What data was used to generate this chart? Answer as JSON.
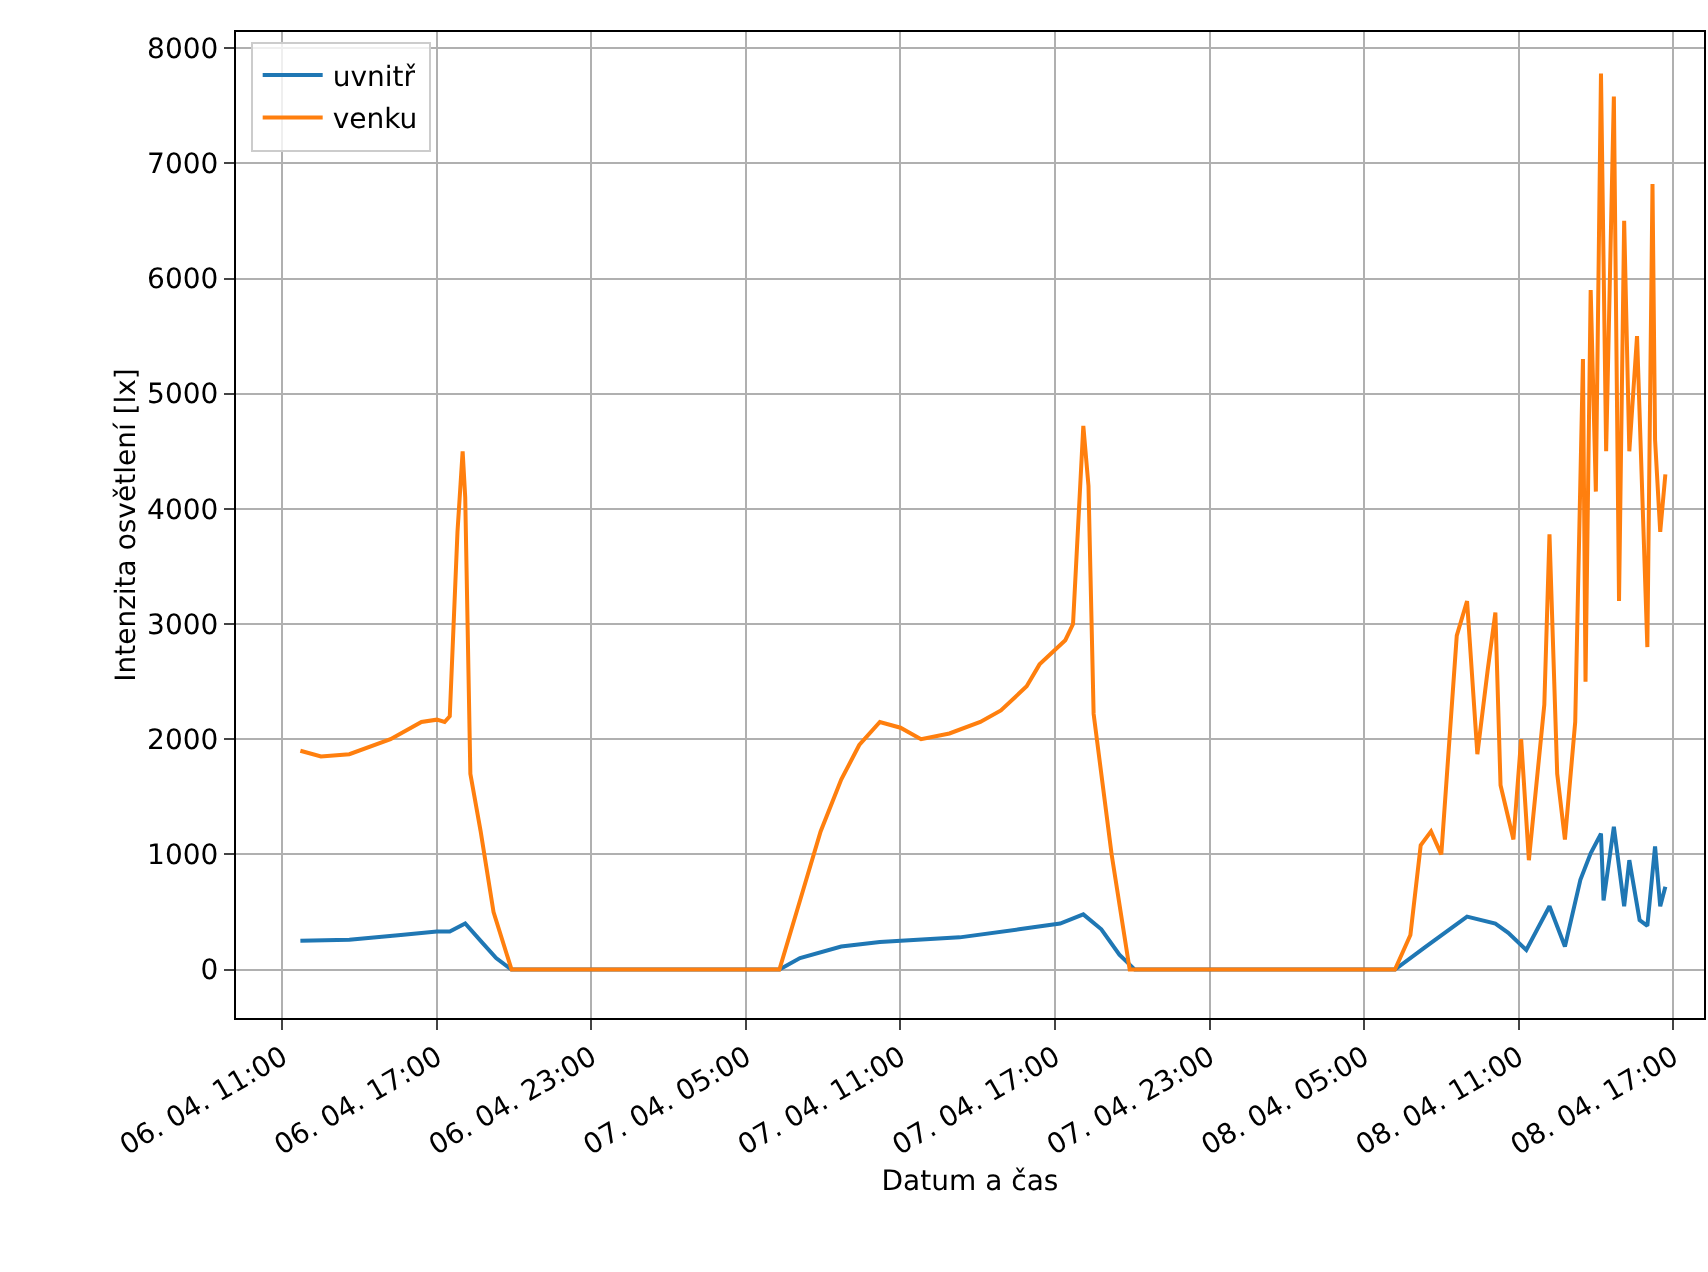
{
  "chart_data": {
    "type": "line",
    "xlabel": "Datum a čas",
    "ylabel": "Intenzita osvětlení [lx]",
    "xlim": [
      "--04-06T09:12",
      "--04-08T18:12"
    ],
    "ylim": [
      -420,
      8140
    ],
    "xticks": [
      {
        "value": "--04-06T11:00",
        "label": "06. 04. 11:00"
      },
      {
        "value": "--04-06T17:00",
        "label": "06. 04. 17:00"
      },
      {
        "value": "--04-06T23:00",
        "label": "06. 04. 23:00"
      },
      {
        "value": "--04-07T05:00",
        "label": "07. 04. 05:00"
      },
      {
        "value": "--04-07T11:00",
        "label": "07. 04. 11:00"
      },
      {
        "value": "--04-07T17:00",
        "label": "07. 04. 17:00"
      },
      {
        "value": "--04-07T23:00",
        "label": "07. 04. 23:00"
      },
      {
        "value": "--04-08T05:00",
        "label": "08. 04. 05:00"
      },
      {
        "value": "--04-08T11:00",
        "label": "08. 04. 11:00"
      },
      {
        "value": "--04-08T17:00",
        "label": "08. 04. 17:00"
      }
    ],
    "yticks": [
      0,
      1000,
      2000,
      3000,
      4000,
      5000,
      6000,
      7000,
      8000
    ],
    "grid": true,
    "legend": "top left",
    "line_style": "solid",
    "marker": "none",
    "series": [
      {
        "name": "uvnitř",
        "color": "#1f77b4",
        "x": [
          "--04-06T11:42",
          "--04-06T13:36",
          "--04-06T15:36",
          "--04-06T17:00",
          "--04-06T17:30",
          "--04-06T18:06",
          "--04-06T18:42",
          "--04-06T19:18",
          "--04-06T19:54",
          "--04-07T06:18",
          "--04-07T07:06",
          "--04-07T08:42",
          "--04-07T10:12",
          "--04-07T13:18",
          "--04-07T15:36",
          "--04-07T17:12",
          "--04-07T18:06",
          "--04-07T18:48",
          "--04-07T19:30",
          "--04-07T20:06",
          "--04-08T06:12",
          "--04-08T07:24",
          "--04-08T09:00",
          "--04-08T10:06",
          "--04-08T10:36",
          "--04-08T11:18",
          "--04-08T12:12",
          "--04-08T12:48",
          "--04-08T13:24",
          "--04-08T13:48",
          "--04-08T14:12",
          "--04-08T14:18",
          "--04-08T14:42",
          "--04-08T15:06",
          "--04-08T15:18",
          "--04-08T15:42",
          "--04-08T16:00",
          "--04-08T16:18",
          "--04-08T16:30",
          "--04-08T16:42"
        ],
        "values": [
          250,
          260,
          300,
          330,
          330,
          400,
          250,
          100,
          0,
          0,
          100,
          200,
          240,
          280,
          350,
          400,
          480,
          350,
          130,
          0,
          0,
          200,
          460,
          400,
          320,
          170,
          550,
          200,
          780,
          1010,
          1180,
          600,
          1240,
          550,
          950,
          430,
          380,
          1070,
          550,
          720
        ]
      },
      {
        "name": "venku",
        "color": "#ff7f0e",
        "x": [
          "--04-06T11:42",
          "--04-06T12:30",
          "--04-06T13:36",
          "--04-06T15:12",
          "--04-06T16:24",
          "--04-06T17:00",
          "--04-06T17:18",
          "--04-06T17:30",
          "--04-06T17:48",
          "--04-06T18:00",
          "--04-06T18:06",
          "--04-06T18:18",
          "--04-06T18:42",
          "--04-06T19:12",
          "--04-06T19:54",
          "--04-07T06:18",
          "--04-07T07:06",
          "--04-07T07:54",
          "--04-07T08:42",
          "--04-07T09:24",
          "--04-07T10:12",
          "--04-07T11:00",
          "--04-07T11:48",
          "--04-07T12:54",
          "--04-07T14:06",
          "--04-07T14:54",
          "--04-07T15:54",
          "--04-07T16:24",
          "--04-07T17:24",
          "--04-07T17:42",
          "--04-07T18:06",
          "--04-07T18:18",
          "--04-07T18:30",
          "--04-07T19:12",
          "--04-07T19:54",
          "--04-08T06:12",
          "--04-08T06:48",
          "--04-08T07:12",
          "--04-08T07:36",
          "--04-08T08:00",
          "--04-08T08:36",
          "--04-08T09:00",
          "--04-08T09:24",
          "--04-08T09:48",
          "--04-08T10:06",
          "--04-08T10:18",
          "--04-08T10:48",
          "--04-08T11:06",
          "--04-08T11:24",
          "--04-08T12:00",
          "--04-08T12:12",
          "--04-08T12:30",
          "--04-08T12:48",
          "--04-08T13:12",
          "--04-08T13:30",
          "--04-08T13:36",
          "--04-08T13:48",
          "--04-08T14:00",
          "--04-08T14:12",
          "--04-08T14:24",
          "--04-08T14:42",
          "--04-08T14:54",
          "--04-08T15:06",
          "--04-08T15:18",
          "--04-08T15:36",
          "--04-08T16:00",
          "--04-08T16:12",
          "--04-08T16:18",
          "--04-08T16:30",
          "--04-08T16:42"
        ],
        "values": [
          1900,
          1850,
          1870,
          2000,
          2150,
          2170,
          2150,
          2200,
          3800,
          4500,
          4100,
          1700,
          1200,
          500,
          0,
          0,
          600,
          1200,
          1650,
          1950,
          2150,
          2100,
          2000,
          2050,
          2150,
          2250,
          2460,
          2650,
          2860,
          3000,
          4720,
          4200,
          2220,
          1000,
          0,
          0,
          300,
          1080,
          1200,
          1000,
          2900,
          3200,
          1870,
          2600,
          3100,
          1600,
          1130,
          2000,
          950,
          2300,
          3780,
          1700,
          1130,
          2150,
          5300,
          2500,
          5900,
          4150,
          7780,
          4500,
          7580,
          3200,
          6500,
          4500,
          5500,
          2800,
          6820,
          4600,
          3800,
          4300
        ]
      }
    ]
  }
}
